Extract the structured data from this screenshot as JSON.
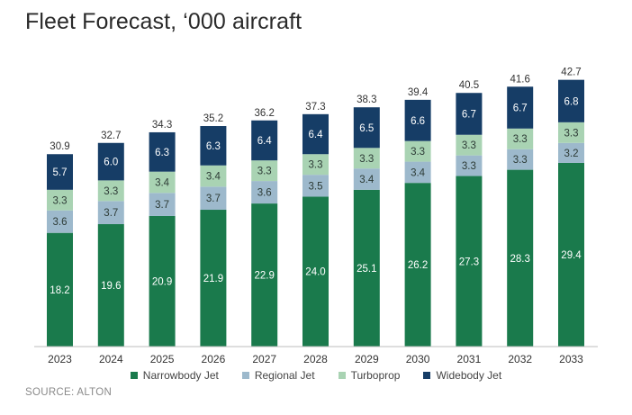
{
  "title": "Fleet Forecast, ‘000 aircraft",
  "source": "SOURCE: ALTON",
  "colors": {
    "Narrowbody Jet": "#1a7a4c",
    "Regional Jet": "#9db9cc",
    "Turboprop": "#a9d3b3",
    "Widebody Jet": "#163d66"
  },
  "chart_data": {
    "type": "bar",
    "stacked": true,
    "categories": [
      "2023",
      "2024",
      "2025",
      "2026",
      "2027",
      "2028",
      "2029",
      "2030",
      "2031",
      "2032",
      "2033"
    ],
    "series": [
      {
        "name": "Narrowbody Jet",
        "values": [
          18.2,
          19.6,
          20.9,
          21.9,
          22.9,
          24.0,
          25.1,
          26.2,
          27.3,
          28.3,
          29.4
        ]
      },
      {
        "name": "Regional Jet",
        "values": [
          3.6,
          3.7,
          3.7,
          3.7,
          3.6,
          3.5,
          3.4,
          3.4,
          3.3,
          3.3,
          3.2
        ]
      },
      {
        "name": "Turboprop",
        "values": [
          3.3,
          3.3,
          3.4,
          3.4,
          3.3,
          3.3,
          3.3,
          3.3,
          3.3,
          3.3,
          3.3
        ]
      },
      {
        "name": "Widebody Jet",
        "values": [
          5.7,
          6.0,
          6.3,
          6.3,
          6.4,
          6.4,
          6.5,
          6.6,
          6.7,
          6.7,
          6.8
        ]
      }
    ],
    "totals": [
      30.9,
      32.7,
      34.3,
      35.2,
      36.2,
      37.3,
      38.3,
      39.4,
      40.5,
      41.6,
      42.7
    ],
    "legend": [
      "Narrowbody Jet",
      "Regional Jet",
      "Turboprop",
      "Widebody Jet"
    ],
    "legend_position": "bottom",
    "grid": false
  }
}
